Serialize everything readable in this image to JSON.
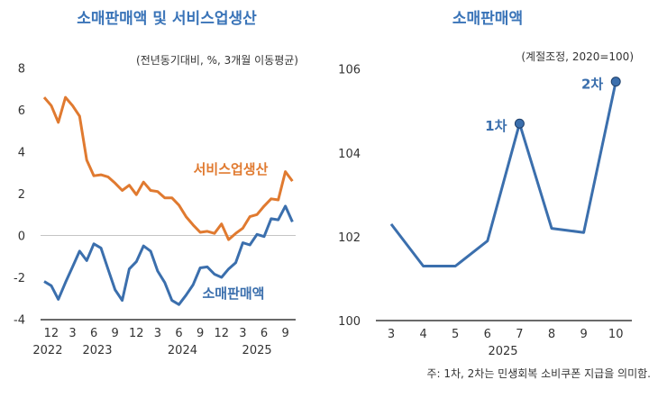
{
  "colors": {
    "orange": "#e07a30",
    "blue": "#3b6fad",
    "title": "#3a74b8"
  },
  "chart_data": [
    {
      "type": "line",
      "title": "소매판매액 및 서비스업생산",
      "unit": "(전년동기대비, %, 3개월 이동평균)",
      "ylim": [
        -4,
        8
      ],
      "yticks": [
        "8",
        "6",
        "4",
        "2",
        "0",
        "-2",
        "-4"
      ],
      "ytick_values": [
        8,
        6,
        4,
        2,
        0,
        -2,
        -4
      ],
      "x": [
        "2022-11",
        "2022-12",
        "2023-01",
        "2023-02",
        "2023-03",
        "2023-04",
        "2023-05",
        "2023-06",
        "2023-07",
        "2023-08",
        "2023-09",
        "2023-10",
        "2023-11",
        "2023-12",
        "2024-01",
        "2024-02",
        "2024-03",
        "2024-04",
        "2024-05",
        "2024-06",
        "2024-07",
        "2024-08",
        "2024-09",
        "2024-10",
        "2024-11",
        "2024-12",
        "2025-01",
        "2025-02",
        "2025-03",
        "2025-04",
        "2025-05",
        "2025-06",
        "2025-07",
        "2025-08",
        "2025-09",
        "2025-10"
      ],
      "xtick_labels": [
        "12",
        "3",
        "6",
        "9",
        "12",
        "3",
        "6",
        "9",
        "12",
        "3",
        "6",
        "9"
      ],
      "xtick_index": [
        1,
        4,
        7,
        10,
        13,
        16,
        19,
        22,
        25,
        28,
        31,
        34
      ],
      "year_labels": [
        "2022",
        "2023",
        "2024",
        "2025"
      ],
      "year_label_index": [
        0.5,
        7.5,
        19.5,
        30
      ],
      "series": [
        {
          "name": "서비스업생산",
          "color": "#e07a30",
          "values": [
            6.6,
            6.2,
            5.4,
            6.6,
            6.2,
            5.7,
            3.6,
            2.85,
            2.9,
            2.8,
            2.5,
            2.15,
            2.4,
            1.95,
            2.55,
            2.15,
            2.1,
            1.8,
            1.8,
            1.45,
            0.9,
            0.5,
            0.15,
            0.2,
            0.1,
            0.55,
            -0.2,
            0.1,
            0.35,
            0.9,
            1.0,
            1.4,
            1.75,
            1.7,
            3.05,
            2.6
          ]
        },
        {
          "name": "소매판매액",
          "color": "#3b6fad",
          "values": [
            -2.2,
            -2.4,
            -3.05,
            -2.25,
            -1.5,
            -0.75,
            -1.2,
            -0.4,
            -0.6,
            -1.6,
            -2.6,
            -3.1,
            -1.6,
            -1.25,
            -0.5,
            -0.75,
            -1.7,
            -2.25,
            -3.1,
            -3.3,
            -2.85,
            -2.35,
            -1.55,
            -1.5,
            -1.85,
            -2.0,
            -1.6,
            -1.3,
            -0.35,
            -0.45,
            0.05,
            -0.05,
            0.8,
            0.75,
            1.4,
            0.65
          ]
        }
      ]
    },
    {
      "type": "line",
      "title": "소매판매액",
      "unit": "(계절조정, 2020=100)",
      "ylim": [
        100,
        106
      ],
      "yticks": [
        "106",
        "104",
        "102",
        "100"
      ],
      "ytick_values": [
        106,
        104,
        102,
        100
      ],
      "categories": [
        "3",
        "4",
        "5",
        "6",
        "7",
        "8",
        "9",
        "10"
      ],
      "xlabel": "2025",
      "series": [
        {
          "name": "소매판매액",
          "color": "#3b6fad",
          "values": [
            102.3,
            101.3,
            101.3,
            101.9,
            104.7,
            102.2,
            102.1,
            105.7
          ]
        }
      ],
      "markers": [
        {
          "index": 4,
          "label": "1차"
        },
        {
          "index": 7,
          "label": "2차"
        }
      ],
      "note": "주: 1차, 2차는 민생회복 소비쿠폰 지급을 의미함."
    }
  ]
}
